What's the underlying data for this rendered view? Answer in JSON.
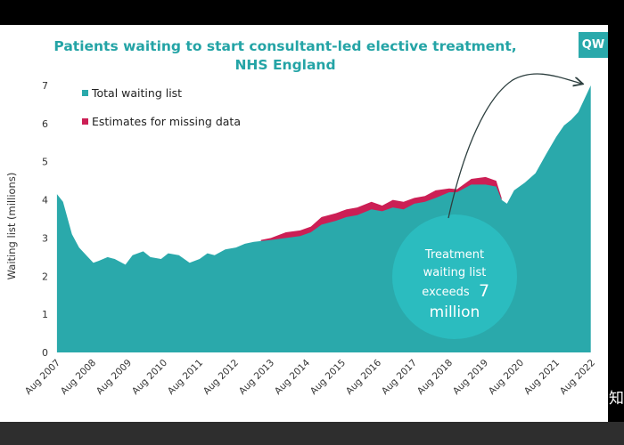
{
  "logo_text": "QW",
  "corner_glyph": "知",
  "chart_data": {
    "type": "area",
    "title": "Patients waiting to start consultant-led elective treatment, NHS England",
    "ylabel": "Waiting list (millions)",
    "ylim": [
      0,
      7
    ],
    "yticks": [
      0,
      1,
      2,
      3,
      4,
      5,
      6,
      7
    ],
    "xlim": [
      2007.583,
      2022.583
    ],
    "xtick_labels": [
      "Aug 2007",
      "Aug 2008",
      "Aug 2009",
      "Aug 2010",
      "Aug 2011",
      "Aug 2012",
      "Aug 2013",
      "Aug 2014",
      "Aug 2015",
      "Aug 2016",
      "Aug 2017",
      "Aug 2018",
      "Aug 2019",
      "Aug 2020",
      "Aug 2021",
      "Aug 2022"
    ],
    "grid": false,
    "legend_position": "top-left",
    "colors": {
      "total": "#2aa9ab",
      "missing": "#cc1f55",
      "annotation": "#2bbcbf"
    },
    "series": [
      {
        "name": "Total waiting list",
        "x": [
          2007.58,
          2007.75,
          2008.0,
          2008.2,
          2008.45,
          2008.6,
          2008.75,
          2009.0,
          2009.2,
          2009.5,
          2009.7,
          2010.0,
          2010.2,
          2010.5,
          2010.7,
          2011.0,
          2011.3,
          2011.58,
          2011.8,
          2012.0,
          2012.3,
          2012.6,
          2012.85,
          2013.1,
          2013.58,
          2014.0,
          2014.4,
          2014.7,
          2015.0,
          2015.4,
          2015.7,
          2016.0,
          2016.4,
          2016.7,
          2017.0,
          2017.3,
          2017.6,
          2017.9,
          2018.2,
          2018.58,
          2018.8,
          2019.2,
          2019.6,
          2019.9,
          2020.05,
          2020.2,
          2020.4,
          2020.7,
          2021.0,
          2021.3,
          2021.58,
          2021.8,
          2022.0,
          2022.2,
          2022.4,
          2022.55
        ],
        "values": [
          4.15,
          3.95,
          3.1,
          2.75,
          2.5,
          2.35,
          2.4,
          2.5,
          2.45,
          2.3,
          2.55,
          2.65,
          2.5,
          2.45,
          2.6,
          2.55,
          2.35,
          2.45,
          2.6,
          2.55,
          2.7,
          2.75,
          2.85,
          2.9,
          2.95,
          3.0,
          3.05,
          3.15,
          3.35,
          3.45,
          3.55,
          3.6,
          3.75,
          3.7,
          3.8,
          3.75,
          3.9,
          3.95,
          4.05,
          4.2,
          4.2,
          4.4,
          4.4,
          4.35,
          4.0,
          3.9,
          4.25,
          4.45,
          4.7,
          5.2,
          5.65,
          5.95,
          6.1,
          6.3,
          6.7,
          7.0
        ]
      },
      {
        "name": "Estimates for missing data",
        "x": [
          2013.3,
          2013.58,
          2014.0,
          2014.4,
          2014.7,
          2015.0,
          2015.4,
          2015.7,
          2016.0,
          2016.4,
          2016.7,
          2017.0,
          2017.3,
          2017.6,
          2017.9,
          2018.2,
          2018.58,
          2018.8,
          2019.2,
          2019.6,
          2019.9,
          2020.05
        ],
        "values": [
          2.95,
          3.0,
          3.15,
          3.2,
          3.3,
          3.55,
          3.65,
          3.75,
          3.8,
          3.95,
          3.85,
          4.0,
          3.95,
          4.05,
          4.1,
          4.25,
          4.3,
          4.28,
          4.55,
          4.6,
          4.5,
          4.05
        ]
      }
    ],
    "annotations": [
      {
        "text": "Treatment waiting list exceeds 7 million",
        "lines": [
          "Treatment",
          "waiting list",
          "exceeds",
          "7",
          "million"
        ],
        "shape": "circle",
        "arrow_to_x": 2022.55,
        "arrow_to_y": 7.0
      }
    ]
  }
}
